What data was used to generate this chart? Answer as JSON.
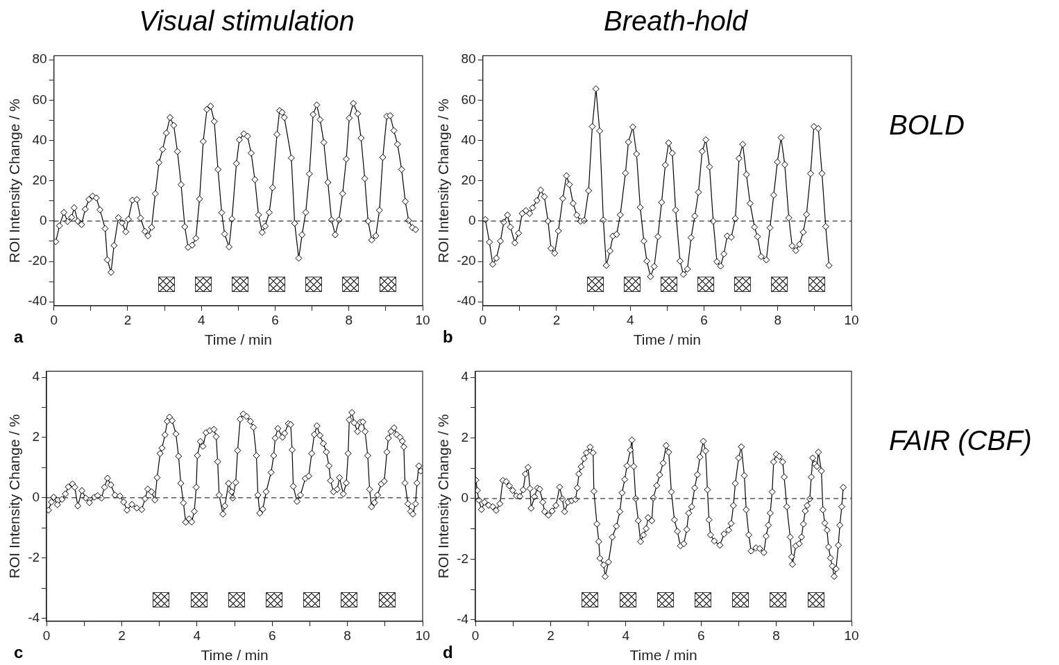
{
  "chart_data": [
    {
      "type": "line",
      "title": "Visual stimulation",
      "xlabel": "Time / min",
      "ylabel": "ROI Intensity Change / %",
      "annotations": [
        "a"
      ],
      "marker": "diamond",
      "line_style": "solid",
      "xlim": [
        0,
        10
      ],
      "ylim": [
        -42,
        82
      ],
      "xticks": [
        0,
        {
          "value": 1,
          "label": null
        },
        2,
        {
          "value": 3,
          "label": null
        },
        4,
        {
          "value": 5,
          "label": null
        },
        6,
        {
          "value": 7,
          "label": null
        },
        8,
        {
          "value": 9,
          "label": null
        },
        10
      ],
      "yticks": [
        -40,
        {
          "value": -30,
          "label": null
        },
        -20,
        {
          "value": -10,
          "label": null
        },
        0,
        {
          "value": 10,
          "label": null
        },
        20,
        {
          "value": 30,
          "label": null
        },
        40,
        {
          "value": 50,
          "label": null
        },
        60,
        {
          "value": 70,
          "label": null
        },
        80
      ],
      "ref_lines": [
        {
          "axis": "y",
          "value": 0,
          "line_style": "dashed",
          "color": "#000000"
        }
      ],
      "x": [
        0.05,
        0.15,
        0.27,
        0.37,
        0.48,
        0.55,
        0.65,
        0.75,
        0.85,
        0.95,
        1.05,
        1.15,
        1.25,
        1.39,
        1.45,
        1.55,
        1.63,
        1.75,
        1.85,
        1.95,
        2.02,
        2.13,
        2.25,
        2.35,
        2.47,
        2.55,
        2.65,
        2.75,
        2.85,
        2.95,
        3.05,
        3.15,
        3.25,
        3.35,
        3.45,
        3.55,
        3.64,
        3.75,
        3.85,
        3.95,
        4.05,
        4.15,
        4.25,
        4.35,
        4.45,
        4.55,
        4.63,
        4.75,
        4.83,
        4.95,
        5.03,
        5.15,
        5.25,
        5.35,
        5.45,
        5.55,
        5.65,
        5.73,
        5.84,
        5.93,
        6.05,
        6.12,
        6.19,
        6.25,
        6.44,
        6.53,
        6.64,
        6.73,
        6.83,
        6.93,
        7.03,
        7.13,
        7.22,
        7.32,
        7.43,
        7.53,
        7.63,
        7.73,
        7.83,
        7.93,
        8.01,
        8.12,
        8.24,
        8.33,
        8.43,
        8.52,
        8.62,
        8.73,
        8.83,
        8.92,
        9.03,
        9.12,
        9.22,
        9.32,
        9.43,
        9.53,
        9.62,
        9.72,
        9.81
      ],
      "series": [
        {
          "color": "#000000",
          "values": [
            -10.2,
            -2.3,
            4.3,
            -0.2,
            1.9,
            6.6,
            0,
            -1.7,
            5.9,
            10.7,
            12.4,
            11.5,
            5.6,
            -3.7,
            -19.2,
            -25.4,
            -12.1,
            1.7,
            -0.8,
            -5.3,
            0.9,
            10.4,
            10.7,
            1.5,
            -5.1,
            -7.3,
            -3.1,
            13.6,
            29,
            35.6,
            43.7,
            51.4,
            47.5,
            34.5,
            18.1,
            -2.8,
            -13,
            -11.9,
            -8.5,
            11,
            39.5,
            55.4,
            57,
            49.4,
            25.6,
            4.2,
            -6.4,
            -12.8,
            1.1,
            28.6,
            40.3,
            43.3,
            42.1,
            33.7,
            20.6,
            3.1,
            -5.6,
            -2.5,
            4.3,
            16.6,
            43,
            54.8,
            53.9,
            51.4,
            31.3,
            -1.1,
            -18.4,
            -6.8,
            4.3,
            23.4,
            52.9,
            57.6,
            50.3,
            39,
            19.2,
            0.6,
            -6.8,
            0.6,
            13.6,
            30.8,
            51.1,
            58.4,
            53.3,
            41.2,
            21.1,
            0,
            -9.4,
            -7.3,
            5.4,
            31.6,
            52,
            52.3,
            44.9,
            38.1,
            25.6,
            9.8,
            0.3,
            -3.2,
            -4.2
          ]
        }
      ]
    },
    {
      "type": "line",
      "title": "Breath-hold",
      "xlabel": "Time / min",
      "ylabel": "ROI Intensity Change / %",
      "annotations": [
        "b",
        "BOLD"
      ],
      "marker": "diamond",
      "line_style": "solid",
      "xlim": [
        0,
        10
      ],
      "ylim": [
        -42,
        82
      ],
      "xticks": [
        0,
        {
          "value": 1,
          "label": null
        },
        2,
        {
          "value": 3,
          "label": null
        },
        4,
        {
          "value": 5,
          "label": null
        },
        6,
        {
          "value": 7,
          "label": null
        },
        8,
        {
          "value": 9,
          "label": null
        },
        10
      ],
      "yticks": [
        -40,
        {
          "value": -30,
          "label": null
        },
        -20,
        {
          "value": -10,
          "label": null
        },
        0,
        {
          "value": 10,
          "label": null
        },
        20,
        {
          "value": 30,
          "label": null
        },
        40,
        {
          "value": 50,
          "label": null
        },
        60,
        {
          "value": 70,
          "label": null
        },
        80
      ],
      "ref_lines": [
        {
          "axis": "y",
          "value": 0,
          "line_style": "dashed",
          "color": "#000000"
        }
      ],
      "x": [
        0.07,
        0.18,
        0.27,
        0.37,
        0.48,
        0.57,
        0.67,
        0.75,
        0.87,
        0.97,
        1.07,
        1.17,
        1.27,
        1.35,
        1.47,
        1.57,
        1.67,
        1.77,
        1.85,
        1.95,
        2.05,
        2.17,
        2.27,
        2.35,
        2.45,
        2.55,
        2.65,
        2.75,
        2.87,
        2.97,
        3.07,
        3.17,
        3.27,
        3.35,
        3.45,
        3.53,
        3.63,
        3.73,
        3.87,
        3.95,
        4.07,
        4.17,
        4.27,
        4.37,
        4.45,
        4.55,
        4.65,
        4.75,
        4.85,
        4.95,
        5.04,
        5.14,
        5.23,
        5.35,
        5.44,
        5.55,
        5.65,
        5.75,
        5.85,
        5.95,
        6.05,
        6.15,
        6.25,
        6.35,
        6.45,
        6.54,
        6.63,
        6.74,
        6.85,
        6.95,
        7.05,
        7.15,
        7.25,
        7.37,
        7.45,
        7.55,
        7.69,
        7.79,
        7.89,
        7.99,
        8.09,
        8.19,
        8.3,
        8.39,
        8.49,
        8.59,
        8.69,
        8.78,
        8.89,
        8.98,
        9.1,
        9.2,
        9.3,
        9.39
      ],
      "series": [
        {
          "color": "#000000",
          "values": [
            0.8,
            -10.4,
            -21.4,
            -18.4,
            -9.9,
            -0.5,
            3,
            -3,
            -10.8,
            -6,
            3.8,
            5.2,
            3.8,
            6.6,
            10.2,
            15.4,
            12.1,
            0,
            -13.5,
            -15.9,
            -4.9,
            11.2,
            22.5,
            18.1,
            8.8,
            3,
            0,
            0.3,
            15.1,
            46.9,
            65.6,
            44.7,
            0.5,
            -22,
            -14.8,
            -7.4,
            -6.6,
            3.1,
            23.8,
            39.2,
            46.7,
            33.3,
            6.8,
            -9.9,
            -19.8,
            -27.5,
            -22.5,
            -7.7,
            9.3,
            27.8,
            38.8,
            33.7,
            5.5,
            -19.8,
            -26.4,
            -23.8,
            -8.2,
            2.5,
            14.3,
            34.6,
            40.3,
            26.9,
            0,
            -20.1,
            -22.3,
            -16.3,
            -7.4,
            -8,
            1.3,
            31.1,
            38.1,
            23.1,
            8.8,
            -3,
            -7.7,
            -17.6,
            -19.2,
            -3.3,
            12.9,
            29.3,
            41.4,
            28,
            1.6,
            -12.3,
            -14.6,
            -11.5,
            -5.5,
            3.3,
            23.6,
            46.9,
            45.9,
            23.6,
            -2.7,
            -22
          ]
        }
      ]
    },
    {
      "type": "line",
      "xlabel": "Time / min",
      "ylabel": "ROI Intensity Change / %",
      "annotations": [
        "c"
      ],
      "marker": "diamond",
      "line_style": "solid",
      "xlim": [
        0,
        10
      ],
      "ylim": [
        -4.1,
        4.2
      ],
      "xticks": [
        0,
        {
          "value": 1,
          "label": null
        },
        2,
        {
          "value": 3,
          "label": null
        },
        4,
        {
          "value": 5,
          "label": null
        },
        6,
        {
          "value": 7,
          "label": null
        },
        8,
        {
          "value": 9,
          "label": null
        },
        10
      ],
      "yticks": [
        -4,
        {
          "value": -3,
          "label": null
        },
        -2,
        {
          "value": -1,
          "label": null
        },
        0,
        {
          "value": 1,
          "label": null
        },
        2,
        {
          "value": 3,
          "label": null
        },
        4
      ],
      "ref_lines": [
        {
          "axis": "y",
          "value": 0,
          "line_style": "dashed",
          "color": "#000000"
        }
      ],
      "x": [
        0.05,
        0.13,
        0.19,
        0.29,
        0.41,
        0.5,
        0.58,
        0.69,
        0.75,
        0.83,
        0.94,
        1.04,
        1.14,
        1.27,
        1.36,
        1.46,
        1.54,
        1.62,
        1.71,
        1.82,
        1.95,
        2.05,
        2.14,
        2.27,
        2.4,
        2.53,
        2.62,
        2.69,
        2.79,
        2.88,
        2.94,
        3.02,
        3.07,
        3.15,
        3.21,
        3.27,
        3.34,
        3.44,
        3.51,
        3.57,
        3.64,
        3.7,
        3.79,
        3.86,
        3.93,
        3.98,
        4.01,
        4.09,
        4.16,
        4.24,
        4.34,
        4.45,
        4.51,
        4.55,
        4.59,
        4.69,
        4.74,
        4.84,
        4.92,
        4.95,
        5.03,
        5.08,
        5.15,
        5.23,
        5.32,
        5.42,
        5.5,
        5.58,
        5.62,
        5.67,
        5.75,
        5.84,
        5.97,
        6.04,
        6.08,
        6.15,
        6.27,
        6.33,
        6.43,
        6.49,
        6.53,
        6.56,
        6.66,
        6.75,
        6.88,
        6.97,
        7.05,
        7.12,
        7.19,
        7.27,
        7.36,
        7.44,
        7.51,
        7.55,
        7.63,
        7.73,
        7.79,
        7.89,
        7.97,
        8.02,
        8.05,
        8.12,
        8.18,
        8.27,
        8.34,
        8.41,
        8.47,
        8.54,
        8.59,
        8.64,
        8.72,
        8.8,
        8.9,
        8.98,
        9.05,
        9.09,
        9.16,
        9.24,
        9.31,
        9.4,
        9.46,
        9.5,
        9.53,
        9.61,
        9.68,
        9.74,
        9.81,
        9.85,
        9.9,
        9.95
      ],
      "series": [
        {
          "color": "#000000",
          "values": [
            -0.41,
            -0.14,
            0.02,
            -0.23,
            -0.05,
            0.13,
            0.36,
            0.46,
            0.35,
            -0.27,
            0.24,
            -0.01,
            -0.16,
            0.02,
            0.07,
            -0.01,
            0.35,
            0.65,
            0.43,
            0.09,
            0.06,
            -0.14,
            -0.41,
            -0.22,
            -0.34,
            -0.39,
            -0.03,
            0.29,
            0.2,
            -0.07,
            0.67,
            1.47,
            1.65,
            2.09,
            2.54,
            2.68,
            2.56,
            2.12,
            1.38,
            0.48,
            -0.17,
            -0.81,
            -0.7,
            -0.8,
            -0.45,
            0.35,
            1.4,
            1.87,
            1.71,
            2.16,
            2.23,
            2.27,
            2.03,
            1.2,
            0.09,
            -0.54,
            -0.27,
            0.48,
            0.2,
            -0.01,
            0.51,
            1.57,
            2.61,
            2.78,
            2.7,
            2.54,
            2.34,
            1.4,
            0.09,
            -0.51,
            -0.38,
            0.2,
            0.84,
            1.4,
            1.98,
            2.3,
            2.01,
            2.14,
            2.46,
            2.43,
            1.59,
            0.38,
            -0.12,
            0.09,
            0.64,
            0.72,
            1.47,
            2.1,
            2.39,
            2.07,
            1.8,
            1.52,
            1.06,
            0.57,
            0.2,
            0.28,
            0.67,
            0.13,
            0.49,
            1.47,
            2.59,
            2.83,
            2.49,
            2.2,
            2.51,
            2.52,
            2.2,
            1.4,
            0.28,
            -0.3,
            -0.16,
            0.09,
            0.46,
            0.55,
            1.52,
            1.98,
            2.2,
            2.32,
            2.1,
            2.01,
            1.88,
            1.69,
            0.49,
            -0.2,
            -0.45,
            -0.54,
            -0.2,
            0.49,
            1.06,
            0.89
          ]
        }
      ]
    },
    {
      "type": "line",
      "xlabel": "Time / min",
      "ylabel": "ROI Intensity Change / %",
      "annotations": [
        "d",
        "FAIR (CBF)"
      ],
      "marker": "diamond",
      "line_style": "solid",
      "xlim": [
        0,
        10
      ],
      "ylim": [
        -4.05,
        4.2
      ],
      "xticks": [
        0,
        {
          "value": 1,
          "label": null
        },
        2,
        {
          "value": 3,
          "label": null
        },
        4,
        {
          "value": 5,
          "label": null
        },
        6,
        {
          "value": 7,
          "label": null
        },
        8,
        {
          "value": 9,
          "label": null
        },
        10
      ],
      "yticks": [
        -4,
        {
          "value": -3,
          "label": null
        },
        -2,
        {
          "value": -1,
          "label": null
        },
        0,
        {
          "value": 1,
          "label": null
        },
        2,
        {
          "value": 3,
          "label": null
        },
        4
      ],
      "ref_lines": [
        {
          "axis": "y",
          "value": 0,
          "line_style": "dashed",
          "color": "#000000"
        }
      ],
      "x": [
        0.01,
        0.05,
        0.09,
        0.16,
        0.24,
        0.35,
        0.46,
        0.55,
        0.65,
        0.73,
        0.82,
        0.9,
        0.99,
        1.09,
        1.18,
        1.27,
        1.33,
        1.4,
        1.45,
        1.48,
        1.57,
        1.65,
        1.71,
        1.79,
        1.84,
        1.94,
        2.04,
        2.14,
        2.24,
        2.31,
        2.37,
        2.46,
        2.56,
        2.66,
        2.71,
        2.75,
        2.81,
        2.89,
        2.95,
        3.05,
        3.13,
        3.15,
        3.23,
        3.28,
        3.31,
        3.41,
        3.45,
        3.54,
        3.64,
        3.75,
        3.84,
        3.9,
        3.97,
        4.03,
        4.12,
        4.16,
        4.21,
        4.26,
        4.33,
        4.39,
        4.47,
        4.54,
        4.59,
        4.69,
        4.73,
        4.82,
        4.9,
        4.99,
        5.07,
        5.14,
        5.21,
        5.29,
        5.37,
        5.45,
        5.54,
        5.62,
        5.67,
        5.75,
        5.83,
        5.9,
        5.97,
        6.06,
        6.12,
        6.17,
        6.21,
        6.25,
        6.35,
        6.5,
        6.61,
        6.73,
        6.8,
        6.86,
        6.91,
        7,
        7.07,
        7.15,
        7.2,
        7.27,
        7.33,
        7.46,
        7.56,
        7.67,
        7.73,
        7.79,
        7.84,
        7.89,
        7.93,
        8,
        8.08,
        8.17,
        8.21,
        8.28,
        8.37,
        8.41,
        8.43,
        8.52,
        8.61,
        8.67,
        8.72,
        8.77,
        8.82,
        8.89,
        8.93,
        8.97,
        9.03,
        9.08,
        9.12,
        9.2,
        9.24,
        9.29,
        9.35,
        9.39,
        9.44,
        9.49,
        9.54,
        9.59,
        9.65,
        9.69,
        9.74,
        9.78
      ],
      "series": [
        {
          "color": "#000000",
          "values": [
            0.61,
            0.27,
            -0.05,
            -0.36,
            -0.12,
            -0.22,
            -0.27,
            -0.39,
            -0.17,
            0.6,
            0.56,
            0.42,
            0.27,
            0.09,
            0.07,
            0.29,
            0.81,
            1.03,
            0.33,
            -0.32,
            0.06,
            0.35,
            0.31,
            -0.12,
            -0.43,
            -0.55,
            -0.41,
            -0.23,
            0.38,
            -0.01,
            -0.43,
            -0.12,
            -0.07,
            -0.03,
            0.35,
            0.81,
            1.05,
            1.32,
            1.51,
            1.7,
            1.51,
            0.24,
            -0.84,
            -1.42,
            -1.97,
            -2.19,
            -2.57,
            -2.09,
            -1.27,
            -0.91,
            -0.43,
            0.19,
            0.63,
            1.08,
            1.6,
            1.93,
            1.06,
            0,
            -0.73,
            -1.42,
            -1.2,
            -0.99,
            -0.63,
            -0.73,
            0.02,
            0.43,
            0.78,
            1.17,
            1.75,
            1.53,
            0.22,
            -0.7,
            -1.08,
            -1.56,
            -1.49,
            -1.02,
            -0.48,
            -0.27,
            0.35,
            0.79,
            1.37,
            1.89,
            1.57,
            0.29,
            -0.7,
            -1.2,
            -1.4,
            -1.54,
            -1.17,
            -1.04,
            -0.82,
            -0.23,
            0.5,
            1.34,
            1.71,
            0.76,
            -0.37,
            -1.2,
            -1.73,
            -1.63,
            -1.65,
            -1.78,
            -1.24,
            -0.88,
            -0.48,
            0.22,
            1.21,
            1.46,
            1.39,
            1.21,
            0.71,
            -0.27,
            -1.27,
            -1.92,
            -2.17,
            -1.56,
            -1.49,
            -1.27,
            -0.84,
            -0.41,
            -0.23,
            -0.01,
            0.71,
            1.34,
            1.14,
            1.06,
            1.53,
            0.91,
            -0.37,
            -0.81,
            -1.04,
            -1.6,
            -1.96,
            -2.23,
            -2.57,
            -2.32,
            -1.54,
            -0.88,
            -0.27,
            0.37
          ]
        }
      ]
    }
  ]
}
